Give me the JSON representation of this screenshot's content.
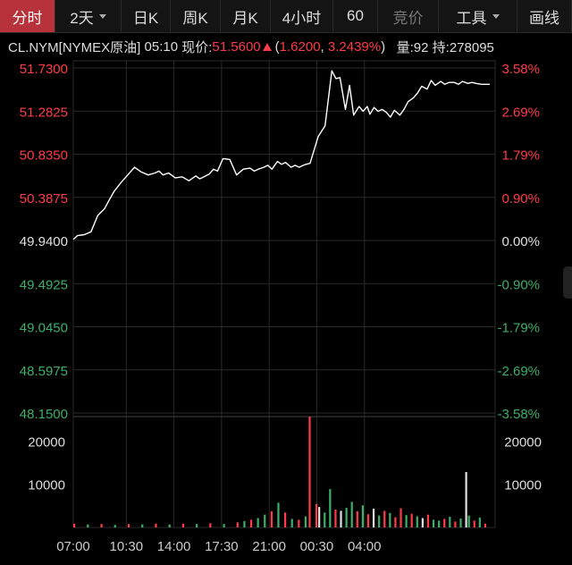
{
  "toolbar": {
    "tabs": [
      {
        "label": "分时",
        "active": true,
        "width": 62
      },
      {
        "label": "2天",
        "dropdown": true,
        "width": 74
      },
      {
        "label": "日K",
        "width": 55
      },
      {
        "label": "周K",
        "width": 56
      },
      {
        "label": "月K",
        "width": 56
      },
      {
        "label": "4小时",
        "width": 70
      },
      {
        "label": "60",
        "width": 50
      },
      {
        "label": "竞价",
        "disabled": true,
        "width": 68
      },
      {
        "label": "工具",
        "dropdown": true,
        "width": 88
      },
      {
        "label": "画线",
        "width": 61
      }
    ]
  },
  "quote": {
    "symbol": "CL.NYM[NYMEX原油]",
    "time": "05:10",
    "price_label": "现价:",
    "price": "51.5600",
    "change": "1.6200",
    "change_pct": "3.2439%",
    "open_paren": "(",
    "sep": ",",
    "close_paren": ")",
    "volume": "量:92",
    "open_interest": "持:278095"
  },
  "colors": {
    "up": "#ff3b4a",
    "down": "#3fae6c",
    "neutral": "#e0e0e0",
    "line": "#ffffff",
    "grid": "#2a2a2a",
    "background": "#000000"
  },
  "chart_data": {
    "type": "line",
    "base_price": 49.94,
    "y_ticks_left": [
      "51.7300",
      "51.2825",
      "50.8350",
      "50.3875",
      "49.9400",
      "49.4925",
      "49.0450",
      "48.5975",
      "48.1500"
    ],
    "y_ticks_right": [
      "3.58%",
      "2.69%",
      "1.79%",
      "0.90%",
      "0.00%",
      "-0.90%",
      "-1.79%",
      "-2.69%",
      "-3.58%"
    ],
    "ylim": [
      48.15,
      51.73
    ],
    "x_ticks": [
      "07:00",
      "10:30",
      "14:00",
      "17:30",
      "21:00",
      "00:30",
      "04:00"
    ],
    "volume_ticks": [
      "20000",
      "10000"
    ],
    "volume_ylim": [
      0,
      26000
    ],
    "price_x_hours": [
      0,
      0.3,
      0.8,
      1.3,
      1.8,
      2.3,
      2.6,
      3.0,
      3.5,
      4.0,
      4.5,
      5.0,
      5.5,
      6.0,
      6.3,
      6.6,
      7.0,
      7.5,
      8.0,
      8.5,
      9.0,
      9.3,
      9.6,
      10.0,
      10.3,
      10.6,
      11.0,
      11.5,
      12.0,
      12.5,
      13.0,
      13.3,
      13.6,
      14.0,
      14.3,
      14.6,
      15.0,
      15.3,
      15.6,
      16.0,
      16.3,
      16.6,
      16.9,
      17.1,
      17.4,
      18.0,
      18.5,
      19.0,
      19.3,
      19.6,
      20.0,
      20.3,
      20.6,
      21.0,
      21.3,
      21.6,
      21.8,
      22.1,
      22.4,
      22.7,
      23.0,
      23.3,
      23.6,
      24.0,
      24.3,
      24.6,
      25.0,
      25.3,
      25.6,
      26.0,
      26.3,
      26.6,
      27.0,
      27.3,
      27.6,
      28.0,
      28.3,
      28.6,
      29.0,
      29.3,
      29.6,
      30.0,
      30.3,
      30.6
    ],
    "price_values": [
      49.95,
      49.99,
      50.0,
      50.03,
      50.2,
      50.27,
      50.35,
      50.45,
      50.54,
      50.62,
      50.7,
      50.65,
      50.62,
      50.64,
      50.66,
      50.62,
      50.64,
      50.59,
      50.6,
      50.56,
      50.61,
      50.58,
      50.6,
      50.63,
      50.68,
      50.66,
      50.79,
      50.78,
      50.62,
      50.68,
      50.69,
      50.66,
      50.68,
      50.7,
      50.72,
      50.68,
      50.76,
      50.73,
      50.75,
      50.7,
      50.72,
      50.7,
      50.72,
      50.73,
      50.74,
      51.02,
      51.13,
      51.7,
      51.62,
      51.63,
      51.3,
      51.55,
      51.24,
      51.33,
      51.28,
      51.33,
      51.25,
      51.32,
      51.28,
      51.3,
      51.27,
      51.22,
      51.29,
      51.24,
      51.3,
      51.38,
      51.42,
      51.47,
      51.54,
      51.51,
      51.6,
      51.55,
      51.59,
      51.56,
      51.58,
      51.58,
      51.56,
      51.59,
      51.57,
      51.58,
      51.57,
      51.56,
      51.56,
      51.56
    ],
    "volume_x_hours": [
      0,
      1,
      2,
      3,
      4,
      5,
      6,
      7,
      8,
      9,
      10,
      11,
      12,
      12.5,
      13,
      13.5,
      14,
      14.5,
      15,
      15.5,
      16,
      16.5,
      17,
      17.3,
      17.8,
      18.0,
      18.4,
      18.8,
      19.2,
      19.6,
      20.0,
      20.4,
      20.8,
      21.2,
      21.6,
      22.0,
      22.4,
      22.8,
      23.2,
      23.6,
      24.0,
      24.4,
      24.8,
      25.2,
      25.6,
      26.0,
      26.4,
      26.8,
      27.2,
      27.6,
      28.0,
      28.4,
      28.8,
      29.0,
      29.4,
      29.8,
      30.2
    ],
    "volume_values": [
      900,
      700,
      800,
      600,
      800,
      700,
      900,
      700,
      900,
      800,
      1000,
      800,
      1200,
      1500,
      1800,
      2200,
      3000,
      3800,
      5800,
      3500,
      2000,
      1800,
      2600,
      26000,
      5500,
      4800,
      3500,
      9000,
      4200,
      3900,
      4600,
      6000,
      3800,
      5200,
      3100,
      4400,
      2800,
      3900,
      3400,
      2400,
      4500,
      2900,
      3200,
      2600,
      2200,
      3000,
      1800,
      1600,
      2000,
      2500,
      1400,
      2100,
      13000,
      2800,
      1600,
      2300,
      900
    ],
    "volume_direction": [
      "up",
      "down",
      "up",
      "down",
      "up",
      "down",
      "up",
      "down",
      "up",
      "down",
      "up",
      "down",
      "up",
      "down",
      "up",
      "down",
      "down",
      "up",
      "down",
      "up",
      "down",
      "up",
      "down",
      "up",
      "up",
      "neutral",
      "down",
      "down",
      "up",
      "neutral",
      "down",
      "down",
      "up",
      "down",
      "up",
      "neutral",
      "down",
      "up",
      "down",
      "up",
      "up",
      "down",
      "up",
      "down",
      "neutral",
      "up",
      "down",
      "down",
      "up",
      "down",
      "up",
      "down",
      "neutral",
      "down",
      "up",
      "down",
      "up"
    ]
  }
}
